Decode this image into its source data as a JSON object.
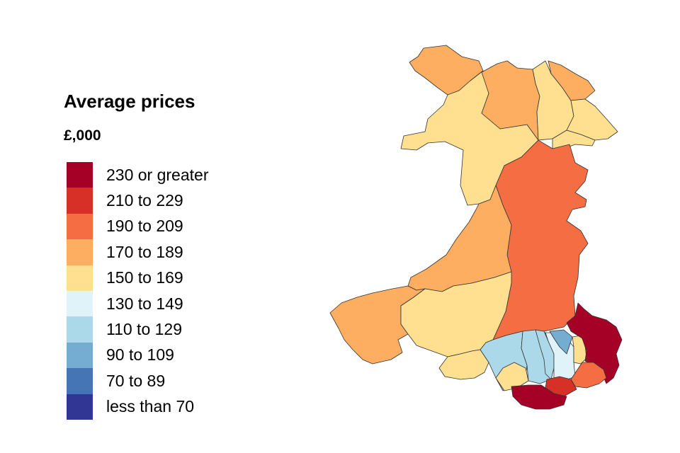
{
  "legend": {
    "title": "Average prices",
    "subtitle": "£,000",
    "items": [
      {
        "label": "230 or greater",
        "color": "#a50026"
      },
      {
        "label": "210 to 229",
        "color": "#d73027"
      },
      {
        "label": "190 to 209",
        "color": "#f46d43"
      },
      {
        "label": "170 to 189",
        "color": "#fdae61"
      },
      {
        "label": "150 to 169",
        "color": "#fee090"
      },
      {
        "label": "130 to 149",
        "color": "#e0f3f8"
      },
      {
        "label": "110 to 129",
        "color": "#abd9e9"
      },
      {
        "label": "90 to 109",
        "color": "#74add1"
      },
      {
        "label": "70 to 89",
        "color": "#4575b4"
      },
      {
        "label": "less than 70",
        "color": "#313695"
      }
    ]
  },
  "map": {
    "regions": [
      {
        "band": "170 to 189"
      },
      {
        "band": "150 to 169"
      },
      {
        "band": "170 to 189"
      },
      {
        "band": "150 to 169"
      },
      {
        "band": "170 to 189"
      },
      {
        "band": "150 to 169"
      },
      {
        "band": "150 to 169"
      },
      {
        "band": "190 to 209"
      },
      {
        "band": "170 to 189"
      },
      {
        "band": "170 to 189"
      },
      {
        "band": "150 to 169"
      },
      {
        "band": "150 to 169"
      },
      {
        "band": "110 to 129"
      },
      {
        "band": "150 to 169"
      },
      {
        "band": "110 to 129"
      },
      {
        "band": "110 to 129"
      },
      {
        "band": "130 to 149"
      },
      {
        "band": "90 to 109"
      },
      {
        "band": "150 to 169"
      },
      {
        "band": "230 or greater"
      },
      {
        "band": "190 to 209"
      },
      {
        "band": "210 to 229"
      },
      {
        "band": "230 or greater"
      }
    ]
  }
}
